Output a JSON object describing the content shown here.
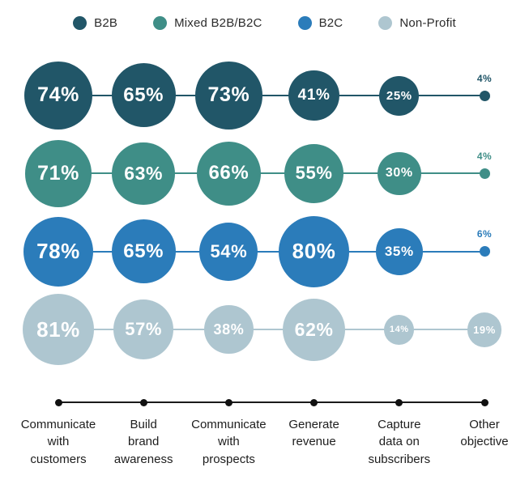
{
  "legend": {
    "items": [
      {
        "label": "B2B",
        "color": "#215668"
      },
      {
        "label": "Mixed B2B/B2C",
        "color": "#3f8e87"
      },
      {
        "label": "B2C",
        "color": "#2b7cba"
      },
      {
        "label": "Non-Profit",
        "color": "#aec6d0"
      }
    ]
  },
  "chart_data": {
    "type": "bubble",
    "title": "",
    "value_suffix": "%",
    "categories": [
      "Communicate with customers",
      "Build brand awareness",
      "Communicate with prospects",
      "Generate revenue",
      "Capture data on subscribers",
      "Other objective"
    ],
    "category_label_lines": [
      [
        "Communicate",
        "with",
        "customers"
      ],
      [
        "Build",
        "brand",
        "awareness"
      ],
      [
        "Communicate",
        "with",
        "prospects"
      ],
      [
        "Generate",
        "revenue"
      ],
      [
        "Capture",
        "data on",
        "subscribers"
      ],
      [
        "Other",
        "objective"
      ]
    ],
    "series": [
      {
        "name": "B2B",
        "color": "#215668",
        "values": [
          74,
          65,
          73,
          41,
          25,
          4
        ]
      },
      {
        "name": "Mixed B2B/B2C",
        "color": "#3f8e87",
        "values": [
          71,
          63,
          66,
          55,
          30,
          4
        ]
      },
      {
        "name": "B2C",
        "color": "#2b7cba",
        "values": [
          78,
          65,
          54,
          80,
          35,
          6
        ]
      },
      {
        "name": "Non-Profit",
        "color": "#aec6d0",
        "values": [
          81,
          57,
          38,
          62,
          14,
          19
        ]
      }
    ],
    "layout_hints": {
      "legend_position": "top",
      "grid": "off",
      "small_value_labels": "above-dot",
      "bubble_scaling": "area-proportional"
    }
  }
}
